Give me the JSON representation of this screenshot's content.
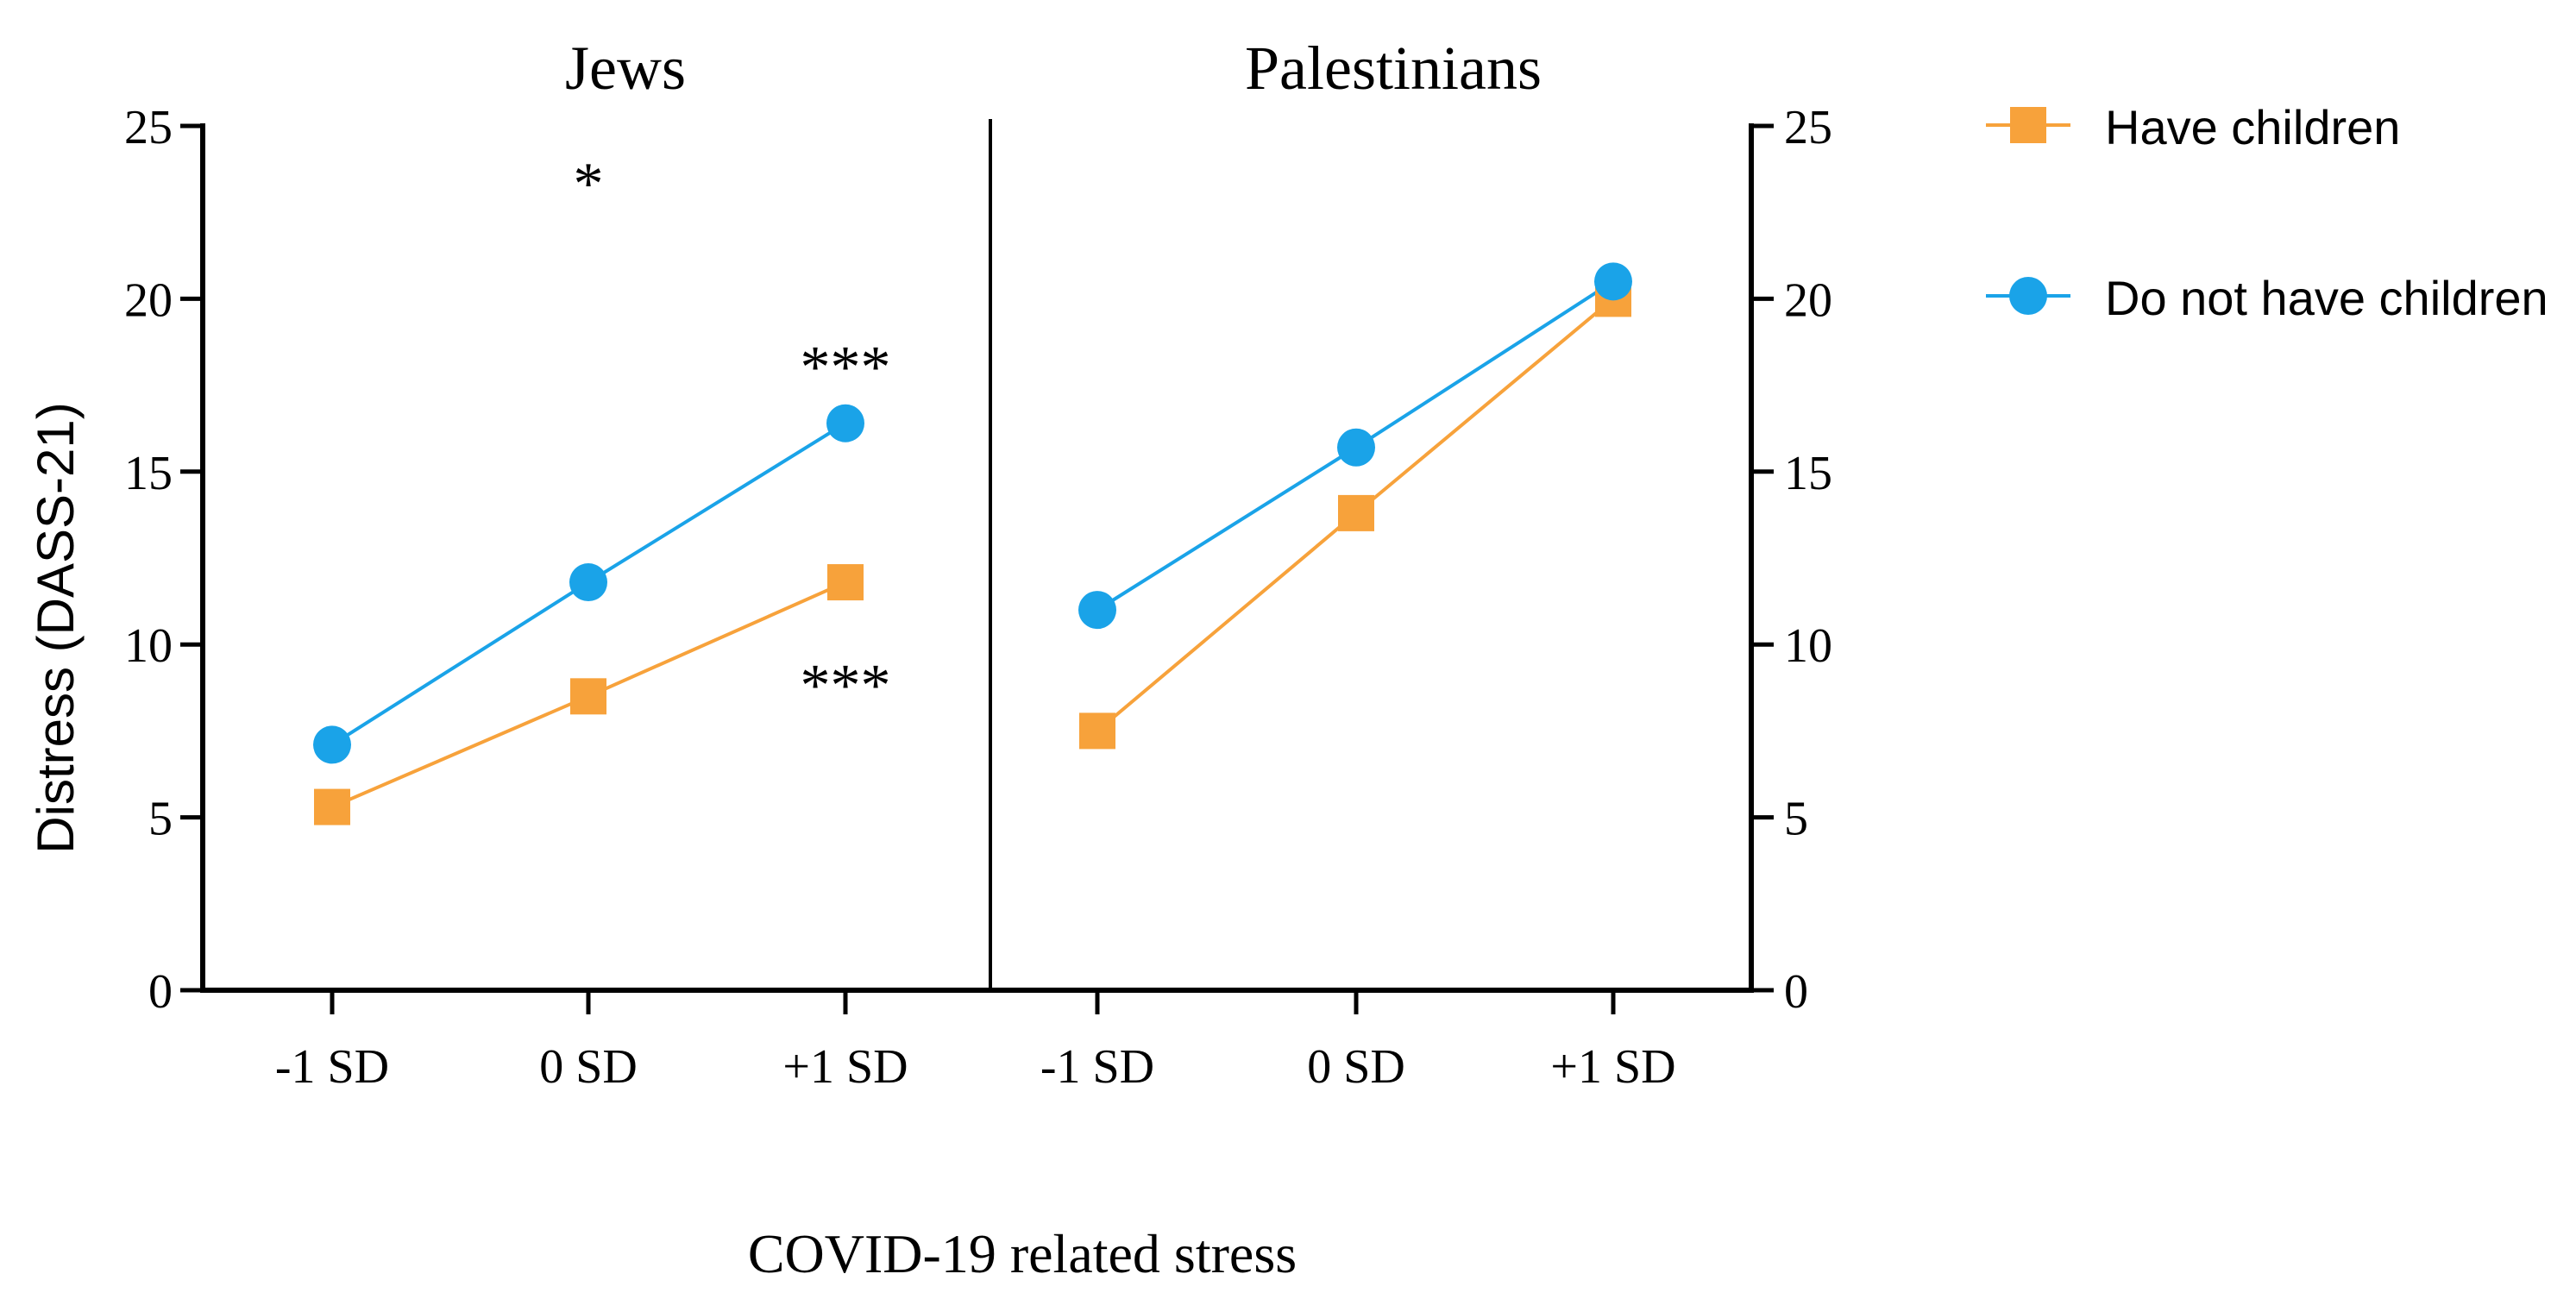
{
  "chart_data": {
    "type": "line",
    "y_axis_label": "Distress (DASS-21)",
    "x_axis_label": "COVID-19 related stress",
    "ylim": [
      0,
      25
    ],
    "yticks": [
      0,
      5,
      10,
      15,
      20,
      25
    ],
    "categories": [
      "-1 SD",
      "0 SD",
      "+1 SD"
    ],
    "colors": {
      "have_children": "#F7A23B",
      "no_children": "#1AA3E8",
      "axis": "#000000"
    },
    "legend": {
      "position": "right",
      "entries": [
        {
          "name": "Have children",
          "marker": "square",
          "color_key": "have_children"
        },
        {
          "name": "Do not have children",
          "marker": "circle",
          "color_key": "no_children"
        }
      ]
    },
    "panels": [
      {
        "title": "Jews",
        "y_axis_side": "left",
        "series": [
          {
            "name": "Have children",
            "values": [
              5.3,
              8.5,
              11.8
            ]
          },
          {
            "name": "Do not have children",
            "values": [
              7.1,
              11.8,
              16.4
            ]
          }
        ],
        "annotations": [
          {
            "text": "*",
            "category_index": 1,
            "y": 23.5
          },
          {
            "text": "***",
            "category_index": 2,
            "y": 18.2
          },
          {
            "text": "***",
            "category_index": 2,
            "y": 9.0
          }
        ]
      },
      {
        "title": "Palestinians",
        "y_axis_side": "right",
        "series": [
          {
            "name": "Have children",
            "values": [
              7.5,
              13.8,
              20.0
            ]
          },
          {
            "name": "Do not have children",
            "values": [
              11.0,
              15.7,
              20.5
            ]
          }
        ],
        "annotations": []
      }
    ]
  }
}
